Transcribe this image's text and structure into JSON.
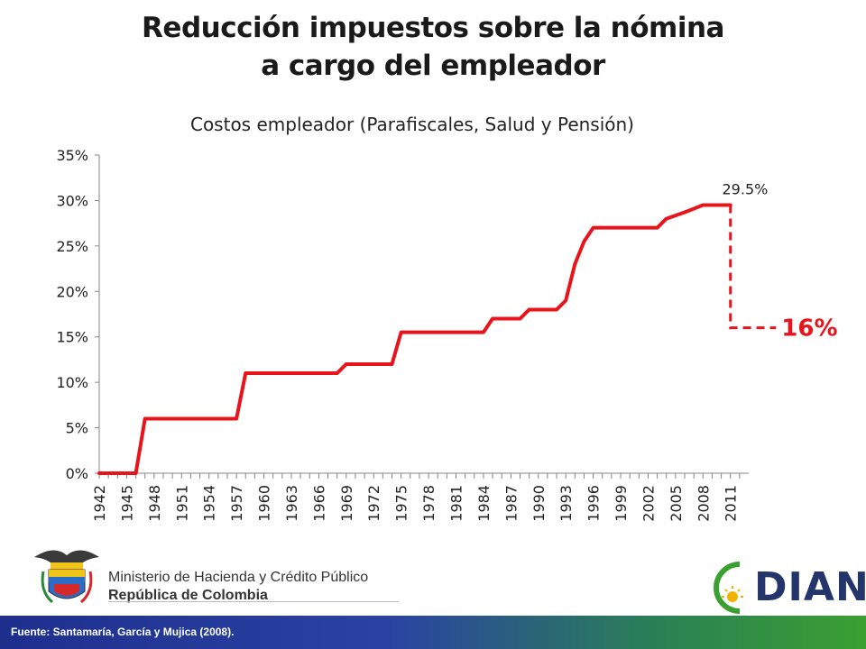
{
  "header": {
    "title_line1": "Reducción impuestos sobre la nómina",
    "title_line2": "a cargo del empleador"
  },
  "chart_data": {
    "type": "line",
    "title": "Costos empleador (Parafiscales, Salud y Pensión)",
    "xlabel": "",
    "ylabel": "",
    "ylim": [
      0,
      35
    ],
    "y_ticks": [
      "0%",
      "5%",
      "10%",
      "15%",
      "20%",
      "25%",
      "30%",
      "35%"
    ],
    "x_ticks": [
      "1942",
      "1945",
      "1948",
      "1951",
      "1954",
      "1957",
      "1960",
      "1963",
      "1966",
      "1969",
      "1972",
      "1975",
      "1978",
      "1981",
      "1984",
      "1987",
      "1990",
      "1993",
      "1996",
      "1999",
      "2002",
      "2005",
      "2008",
      "2011"
    ],
    "grid": false,
    "legend": "none",
    "series": [
      {
        "color": "#e8141b",
        "points": [
          [
            1942,
            0
          ],
          [
            1946,
            0
          ],
          [
            1947,
            6
          ],
          [
            1957,
            6
          ],
          [
            1958,
            11
          ],
          [
            1968,
            11
          ],
          [
            1969,
            12
          ],
          [
            1974,
            12
          ],
          [
            1975,
            15.5
          ],
          [
            1984,
            15.5
          ],
          [
            1985,
            17
          ],
          [
            1988,
            17
          ],
          [
            1989,
            18
          ],
          [
            1992,
            18
          ],
          [
            1993,
            19
          ],
          [
            1994,
            23
          ],
          [
            1995,
            25.5
          ],
          [
            1996,
            27
          ],
          [
            2003,
            27
          ],
          [
            2004,
            28
          ],
          [
            2006,
            28.7
          ],
          [
            2008,
            29.5
          ],
          [
            2011,
            29.5
          ]
        ]
      }
    ],
    "drop": {
      "from_x": 2011,
      "from_y": 29.5,
      "to_y": 16,
      "to_x_end": 2015
    },
    "annotations": [
      {
        "text": "29.5%",
        "x": 2009.5,
        "y": 29.5
      },
      {
        "text": "16%",
        "x": 2015,
        "y": 16
      }
    ]
  },
  "logos": {
    "ministry_line1": "Ministerio de Hacienda y Crédito Público",
    "ministry_line2": "República de Colombia",
    "dian": "DIAN"
  },
  "footer": {
    "source": "Fuente: Santamaría, García y  Mujica (2008)."
  },
  "colors": {
    "series": "#e8141b",
    "footer_blue": "#1e2f8e",
    "footer_green": "#3aa030",
    "dian_blue": "#23356b",
    "dian_green": "#3aa030"
  }
}
